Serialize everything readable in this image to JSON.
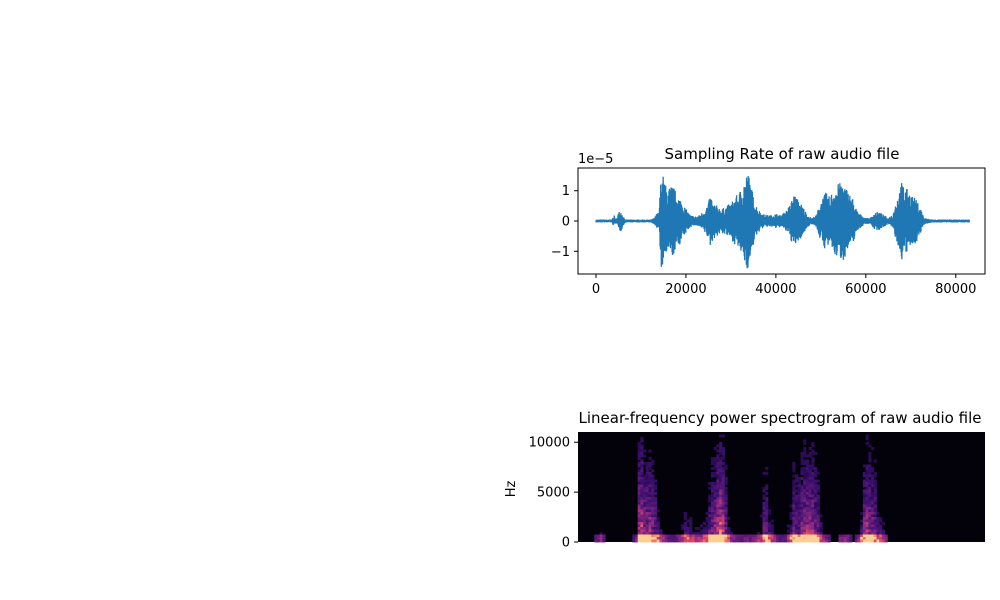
{
  "chart_data": [
    {
      "type": "line",
      "title": "Sampling Rate of raw audio file",
      "xlabel": "",
      "ylabel": "",
      "y_scale_label": "1e−5",
      "xlim": [
        -4000,
        86500
      ],
      "ylim": [
        -1.75,
        1.75
      ],
      "x_ticks": [
        0,
        20000,
        40000,
        60000,
        80000
      ],
      "x_tick_labels": [
        "0",
        "20000",
        "40000",
        "60000",
        "80000"
      ],
      "y_ticks": [
        1,
        0,
        -1
      ],
      "y_tick_labels": [
        "1",
        "0",
        "−1"
      ],
      "color": "#1f77b4",
      "n_samples": 83000,
      "envelope": {
        "x": [
          0,
          3500,
          4000,
          4500,
          5000,
          5500,
          6000,
          6500,
          7000,
          8000,
          9000,
          10000,
          11000,
          12000,
          13000,
          13500,
          14000,
          14500,
          15000,
          15500,
          16000,
          17000,
          18000,
          19000,
          20000,
          21000,
          22000,
          23000,
          24000,
          25000,
          25500,
          26000,
          27000,
          28000,
          29000,
          30000,
          31000,
          32000,
          33000,
          33500,
          34000,
          34500,
          35000,
          36000,
          37000,
          38000,
          39000,
          40000,
          41000,
          42000,
          43000,
          44000,
          45000,
          46000,
          47000,
          48000,
          49000,
          50000,
          51000,
          52000,
          53000,
          54000,
          55000,
          56000,
          57000,
          58000,
          59000,
          60000,
          61000,
          62000,
          63000,
          64000,
          65000,
          66000,
          67000,
          68000,
          69000,
          70000,
          71000,
          72000,
          73000,
          75000,
          80000,
          83000
        ],
        "amplitude": [
          0.05,
          0.05,
          0.2,
          0.05,
          0.3,
          0.35,
          0.2,
          0.05,
          0.05,
          0.05,
          0.05,
          0.05,
          0.05,
          0.05,
          0.1,
          0.25,
          0.3,
          1.6,
          1.5,
          1.2,
          1.1,
          1.2,
          0.9,
          0.7,
          0.4,
          0.2,
          0.15,
          0.2,
          0.35,
          0.6,
          0.9,
          0.6,
          0.5,
          0.4,
          0.5,
          0.6,
          0.8,
          1.0,
          1.4,
          1.6,
          1.55,
          1.2,
          0.8,
          0.4,
          0.25,
          0.2,
          0.2,
          0.25,
          0.2,
          0.3,
          0.5,
          0.9,
          0.7,
          0.5,
          0.2,
          0.1,
          0.2,
          0.7,
          0.95,
          0.8,
          1.15,
          1.25,
          1.3,
          1.0,
          0.8,
          0.35,
          0.2,
          0.1,
          0.1,
          0.3,
          0.3,
          0.2,
          0.1,
          0.25,
          0.8,
          1.3,
          1.1,
          0.9,
          0.75,
          0.5,
          0.1,
          0.05,
          0.05,
          0.05
        ]
      }
    },
    {
      "type": "heatmap",
      "title": "Linear-frequency power spectrogram of raw audio file",
      "xlabel": "",
      "ylabel": "Hz",
      "ylim": [
        0,
        11025
      ],
      "y_ticks": [
        0,
        5000,
        10000
      ],
      "y_tick_labels": [
        "0",
        "5000",
        "10000"
      ],
      "colormap": "magma",
      "background": "#03020b"
    }
  ]
}
